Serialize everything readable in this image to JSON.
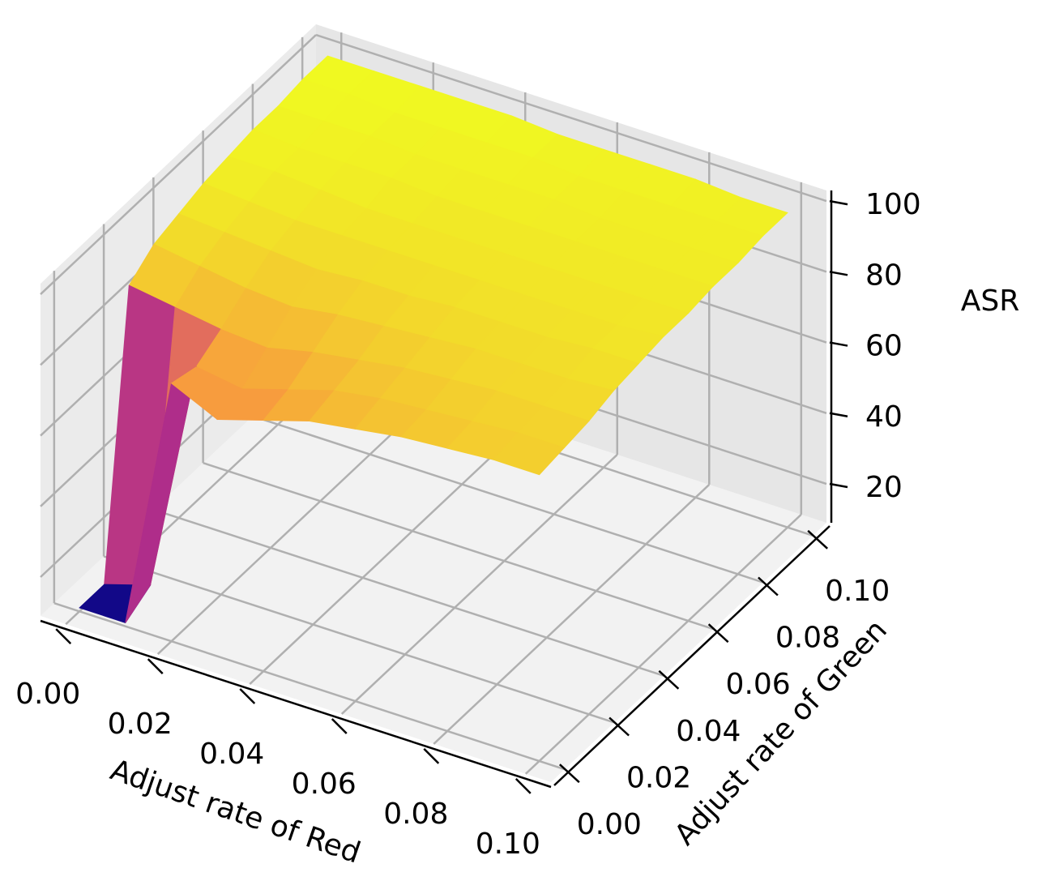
{
  "chart_data": {
    "type": "surface3d",
    "colormap": "plasma",
    "x_label": "Adjust rate of Red",
    "y_label": "Adjust rate of Green",
    "z_label": "ASR",
    "x": [
      0,
      0.01,
      0.02,
      0.03,
      0.04,
      0.05,
      0.06,
      0.07,
      0.08,
      0.09,
      0.1
    ],
    "y": [
      0,
      0.01,
      0.02,
      0.03,
      0.04,
      0.05,
      0.06,
      0.07,
      0.08,
      0.09,
      0.1
    ],
    "z": [
      [
        10,
        10,
        88,
        93,
        95,
        97,
        98,
        99,
        99,
        100,
        100
      ],
      [
        10,
        14,
        86,
        91,
        94,
        96,
        98,
        98,
        99,
        100,
        100
      ],
      [
        82,
        80,
        84,
        89,
        93,
        95,
        97,
        98,
        99,
        99,
        100
      ],
      [
        76,
        78,
        83,
        88,
        92,
        95,
        96,
        98,
        98,
        99,
        100
      ],
      [
        80,
        82,
        86,
        90,
        93,
        95,
        96,
        97,
        98,
        99,
        100
      ],
      [
        84,
        86,
        88,
        91,
        93,
        95,
        96,
        97,
        98,
        99,
        99
      ],
      [
        86,
        88,
        90,
        92,
        94,
        95,
        96,
        97,
        98,
        98,
        99
      ],
      [
        88,
        89,
        91,
        93,
        94,
        95,
        96,
        97,
        97,
        98,
        99
      ],
      [
        89,
        90,
        92,
        93,
        94,
        95,
        96,
        97,
        97,
        98,
        99
      ],
      [
        90,
        91,
        92,
        93,
        95,
        95,
        96,
        97,
        97,
        98,
        98
      ],
      [
        90,
        91,
        92,
        94,
        95,
        96,
        96,
        97,
        97,
        98,
        98
      ]
    ],
    "xlim": [
      -0.0055,
      0.1055
    ],
    "ylim": [
      -0.0055,
      0.1055
    ],
    "zlim": [
      9,
      103
    ],
    "xticks": [
      {
        "value": 0,
        "label": "0.00"
      },
      {
        "value": 0.02,
        "label": "0.02"
      },
      {
        "value": 0.04,
        "label": "0.04"
      },
      {
        "value": 0.06,
        "label": "0.06"
      },
      {
        "value": 0.08,
        "label": "0.08"
      },
      {
        "value": 0.1,
        "label": "0.10"
      }
    ],
    "yticks": [
      {
        "value": 0,
        "label": "0.00"
      },
      {
        "value": 0.02,
        "label": "0.02"
      },
      {
        "value": 0.04,
        "label": "0.04"
      },
      {
        "value": 0.06,
        "label": "0.06"
      },
      {
        "value": 0.08,
        "label": "0.08"
      },
      {
        "value": 0.1,
        "label": "0.10"
      }
    ],
    "zticks": [
      20,
      40,
      60,
      80,
      100
    ],
    "grid": true
  }
}
